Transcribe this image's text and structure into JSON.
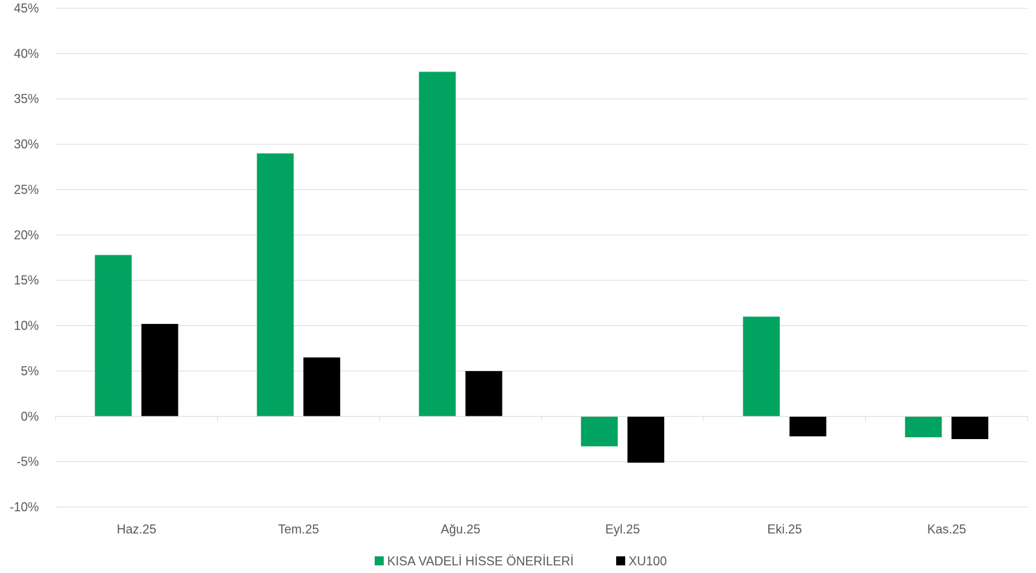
{
  "chart_data": {
    "type": "bar",
    "categories": [
      "Haz.25",
      "Tem.25",
      "Ağu.25",
      "Eyl.25",
      "Eki.25",
      "Kas.25"
    ],
    "series": [
      {
        "name": "KISA VADELİ HİSSE ÖNERİLERİ",
        "color": "#00a360",
        "values": [
          17.8,
          29.0,
          38.0,
          -3.3,
          11.0,
          -2.3
        ]
      },
      {
        "name": "XU100",
        "color": "#000000",
        "values": [
          10.2,
          6.5,
          5.0,
          -5.1,
          -2.2,
          -2.5
        ]
      }
    ],
    "ylim": [
      -10,
      45
    ],
    "yticks": [
      -10,
      -5,
      0,
      5,
      10,
      15,
      20,
      25,
      30,
      35,
      40,
      45
    ],
    "ytick_labels": [
      "-10%",
      "-5%",
      "0%",
      "5%",
      "10%",
      "15%",
      "20%",
      "25%",
      "30%",
      "35%",
      "40%",
      "45%"
    ],
    "grid": true,
    "legend_position": "bottom",
    "title": "",
    "xlabel": "",
    "ylabel": ""
  }
}
